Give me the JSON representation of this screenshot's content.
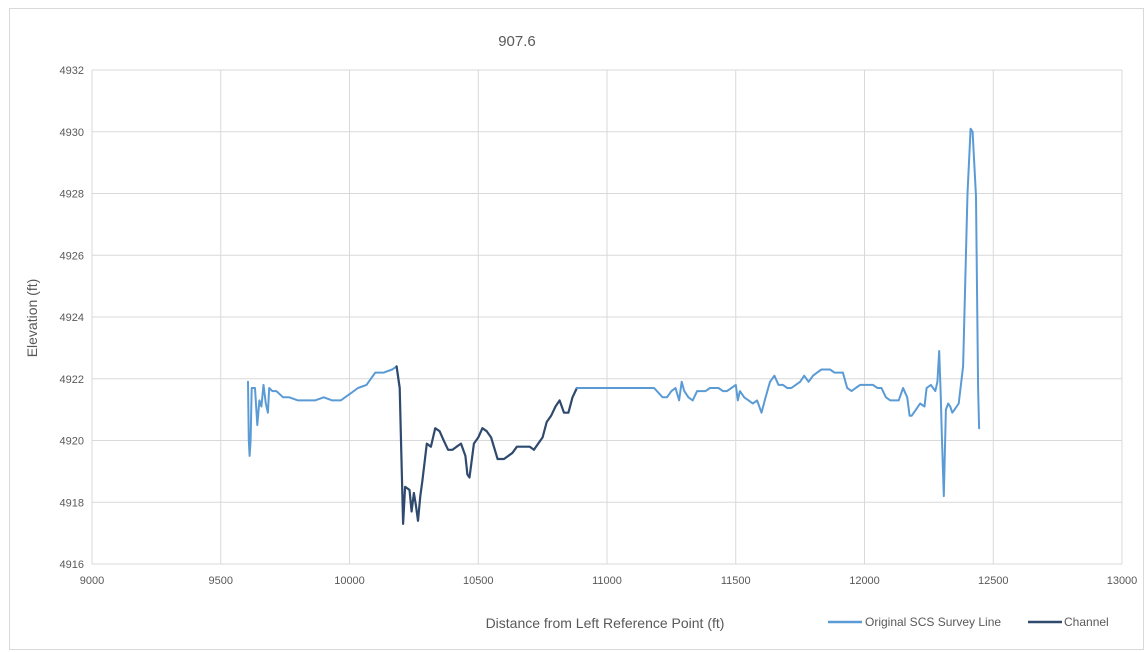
{
  "chart_data": {
    "type": "line",
    "title": "907.6",
    "xlabel": "Distance from Left Reference Point (ft)",
    "ylabel": "Elevation (ft)",
    "xlim": [
      9000,
      13000
    ],
    "ylim": [
      4916,
      4932
    ],
    "x_ticks": [
      9000,
      9500,
      10000,
      10500,
      11000,
      11500,
      12000,
      12500,
      13000
    ],
    "y_ticks": [
      4916,
      4918,
      4920,
      4922,
      4924,
      4926,
      4928,
      4930,
      4932
    ],
    "grid": true,
    "legend_position": "bottom-right",
    "series": [
      {
        "name": "Original SCS Survey Line",
        "color": "#5b9bd5",
        "points": [
          [
            9606,
            4921.9
          ],
          [
            9609,
            4920.0
          ],
          [
            9612,
            4919.5
          ],
          [
            9616,
            4920.0
          ],
          [
            9620,
            4921.7
          ],
          [
            9633,
            4921.7
          ],
          [
            9642,
            4920.5
          ],
          [
            9650,
            4921.3
          ],
          [
            9658,
            4921.1
          ],
          [
            9666,
            4921.8
          ],
          [
            9675,
            4921.2
          ],
          [
            9683,
            4920.9
          ],
          [
            9688,
            4921.7
          ],
          [
            9700,
            4921.6
          ],
          [
            9716,
            4921.6
          ],
          [
            9742,
            4921.4
          ],
          [
            9766,
            4921.4
          ],
          [
            9800,
            4921.3
          ],
          [
            9834,
            4921.3
          ],
          [
            9866,
            4921.3
          ],
          [
            9900,
            4921.4
          ],
          [
            9933,
            4921.3
          ],
          [
            9966,
            4921.3
          ],
          [
            10000,
            4921.5
          ],
          [
            10033,
            4921.7
          ],
          [
            10066,
            4921.8
          ],
          [
            10100,
            4922.2
          ],
          [
            10133,
            4922.2
          ],
          [
            10166,
            4922.3
          ],
          [
            10183,
            4922.4
          ],
          [
            10195,
            4921.7
          ]
        ]
      },
      {
        "name": "Channel",
        "color": "#2f4a6e",
        "points": [
          [
            10183,
            4922.4
          ],
          [
            10195,
            4921.7
          ],
          [
            10200,
            4920.0
          ],
          [
            10208,
            4917.3
          ],
          [
            10216,
            4918.5
          ],
          [
            10233,
            4918.4
          ],
          [
            10241,
            4917.7
          ],
          [
            10250,
            4918.3
          ],
          [
            10258,
            4917.9
          ],
          [
            10266,
            4917.4
          ],
          [
            10275,
            4918.2
          ],
          [
            10283,
            4918.7
          ],
          [
            10300,
            4919.9
          ],
          [
            10316,
            4919.8
          ],
          [
            10333,
            4920.4
          ],
          [
            10350,
            4920.3
          ],
          [
            10366,
            4920.0
          ],
          [
            10383,
            4919.7
          ],
          [
            10400,
            4919.7
          ],
          [
            10416,
            4919.8
          ],
          [
            10433,
            4919.9
          ],
          [
            10450,
            4919.5
          ],
          [
            10458,
            4918.9
          ],
          [
            10466,
            4918.8
          ],
          [
            10483,
            4919.9
          ],
          [
            10500,
            4920.1
          ],
          [
            10516,
            4920.4
          ],
          [
            10533,
            4920.3
          ],
          [
            10550,
            4920.1
          ],
          [
            10575,
            4919.4
          ],
          [
            10600,
            4919.4
          ],
          [
            10633,
            4919.6
          ],
          [
            10650,
            4919.8
          ],
          [
            10666,
            4919.8
          ],
          [
            10700,
            4919.8
          ],
          [
            10716,
            4919.7
          ],
          [
            10733,
            4919.9
          ],
          [
            10750,
            4920.1
          ],
          [
            10766,
            4920.6
          ],
          [
            10783,
            4920.8
          ],
          [
            10800,
            4921.1
          ],
          [
            10816,
            4921.3
          ],
          [
            10833,
            4920.9
          ],
          [
            10850,
            4920.9
          ],
          [
            10866,
            4921.4
          ],
          [
            10883,
            4921.7
          ]
        ]
      },
      {
        "name": "",
        "color": "#5b9bd5",
        "points": [
          [
            10883,
            4921.7
          ],
          [
            10916,
            4921.7
          ],
          [
            10950,
            4921.7
          ],
          [
            10983,
            4921.7
          ],
          [
            11016,
            4921.7
          ],
          [
            11050,
            4921.7
          ],
          [
            11083,
            4921.7
          ],
          [
            11116,
            4921.7
          ],
          [
            11150,
            4921.7
          ],
          [
            11183,
            4921.7
          ],
          [
            11216,
            4921.4
          ],
          [
            11233,
            4921.4
          ],
          [
            11250,
            4921.6
          ],
          [
            11266,
            4921.7
          ],
          [
            11280,
            4921.3
          ],
          [
            11290,
            4921.9
          ],
          [
            11300,
            4921.6
          ],
          [
            11316,
            4921.4
          ],
          [
            11333,
            4921.3
          ],
          [
            11350,
            4921.6
          ],
          [
            11366,
            4921.6
          ],
          [
            11383,
            4921.6
          ],
          [
            11400,
            4921.7
          ],
          [
            11416,
            4921.7
          ],
          [
            11433,
            4921.7
          ],
          [
            11450,
            4921.6
          ],
          [
            11466,
            4921.6
          ],
          [
            11483,
            4921.7
          ],
          [
            11500,
            4921.8
          ],
          [
            11508,
            4921.3
          ],
          [
            11516,
            4921.6
          ],
          [
            11533,
            4921.4
          ],
          [
            11550,
            4921.3
          ],
          [
            11566,
            4921.2
          ],
          [
            11583,
            4921.3
          ],
          [
            11600,
            4920.9
          ],
          [
            11616,
            4921.4
          ],
          [
            11633,
            4921.9
          ],
          [
            11650,
            4922.1
          ],
          [
            11666,
            4921.8
          ],
          [
            11683,
            4921.8
          ],
          [
            11700,
            4921.7
          ],
          [
            11716,
            4921.7
          ],
          [
            11733,
            4921.8
          ],
          [
            11750,
            4921.9
          ],
          [
            11766,
            4922.1
          ],
          [
            11783,
            4921.9
          ],
          [
            11800,
            4922.1
          ],
          [
            11816,
            4922.2
          ],
          [
            11833,
            4922.3
          ],
          [
            11850,
            4922.3
          ],
          [
            11866,
            4922.3
          ],
          [
            11883,
            4922.2
          ],
          [
            11916,
            4922.2
          ],
          [
            11933,
            4921.7
          ],
          [
            11950,
            4921.6
          ],
          [
            11966,
            4921.7
          ],
          [
            11983,
            4921.8
          ],
          [
            12000,
            4921.8
          ],
          [
            12016,
            4921.8
          ],
          [
            12033,
            4921.8
          ],
          [
            12050,
            4921.7
          ],
          [
            12066,
            4921.7
          ],
          [
            12083,
            4921.4
          ],
          [
            12100,
            4921.3
          ],
          [
            12133,
            4921.3
          ],
          [
            12150,
            4921.7
          ],
          [
            12166,
            4921.4
          ],
          [
            12175,
            4920.8
          ],
          [
            12183,
            4920.8
          ],
          [
            12200,
            4921.0
          ],
          [
            12216,
            4921.2
          ],
          [
            12233,
            4921.1
          ],
          [
            12241,
            4921.7
          ],
          [
            12258,
            4921.8
          ],
          [
            12275,
            4921.6
          ],
          [
            12283,
            4921.9
          ],
          [
            12290,
            4922.9
          ],
          [
            12296,
            4921.5
          ],
          [
            12300,
            4920.2
          ],
          [
            12308,
            4918.2
          ],
          [
            12316,
            4921.0
          ],
          [
            12325,
            4921.2
          ],
          [
            12333,
            4921.1
          ],
          [
            12341,
            4920.9
          ],
          [
            12350,
            4921.0
          ],
          [
            12366,
            4921.2
          ],
          [
            12383,
            4922.4
          ],
          [
            12400,
            4928.0
          ],
          [
            12412,
            4930.1
          ],
          [
            12420,
            4930.0
          ],
          [
            12433,
            4927.9
          ],
          [
            12441,
            4921.7
          ],
          [
            12445,
            4920.4
          ]
        ]
      }
    ]
  }
}
